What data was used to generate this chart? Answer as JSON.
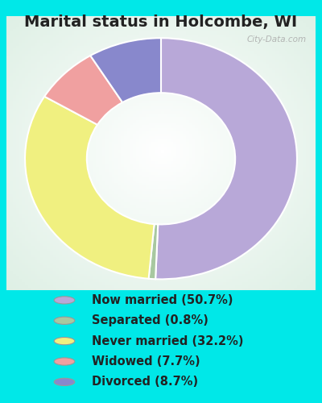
{
  "title": "Marital status in Holcombe, WI",
  "categories": [
    "Now married",
    "Separated",
    "Never married",
    "Widowed",
    "Divorced"
  ],
  "values": [
    50.7,
    0.8,
    32.2,
    7.7,
    8.7
  ],
  "colors": [
    "#b8a8d8",
    "#a8c8a0",
    "#f0f080",
    "#f0a0a0",
    "#8888cc"
  ],
  "legend_labels": [
    "Now married (50.7%)",
    "Separated (0.8%)",
    "Never married (32.2%)",
    "Widowed (7.7%)",
    "Divorced (8.7%)"
  ],
  "bg_color": "#00e8e8",
  "chart_bg_color": "#d8ede0",
  "watermark": "City-Data.com",
  "title_fontsize": 14,
  "legend_fontsize": 10.5
}
